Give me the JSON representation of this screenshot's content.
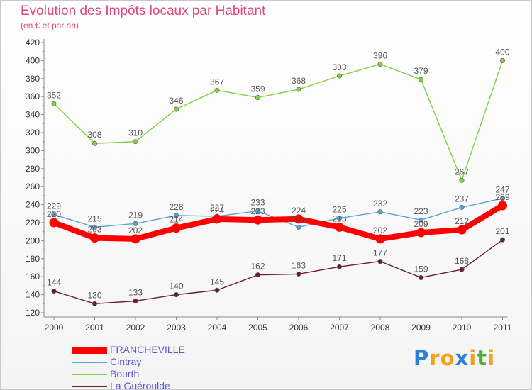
{
  "header": {
    "title": "Evolution des Impôts locaux par Habitant",
    "subtitle": "(en € et par an)"
  },
  "logo": {
    "text": "Proxiti",
    "letters": [
      {
        "char": "P",
        "color": "#2e7fd6"
      },
      {
        "char": "r",
        "color": "#f0a21b"
      },
      {
        "char": "o",
        "color": "#f0a21b"
      },
      {
        "char": "x",
        "color": "#2e7fd6"
      },
      {
        "char": "i",
        "color": "#f0a21b"
      },
      {
        "char": "t",
        "color": "#4fae3a"
      },
      {
        "char": "i",
        "color": "#f0a21b"
      }
    ]
  },
  "chart_data": {
    "type": "line",
    "title": "Evolution des Impôts locaux par Habitant",
    "subtitle": "(en € et par an)",
    "xlabel": "",
    "ylabel": "",
    "categories": [
      "2000",
      "2001",
      "2002",
      "2003",
      "2004",
      "2005",
      "2006",
      "2007",
      "2008",
      "2009",
      "2010",
      "2011"
    ],
    "yticks": [
      120,
      140,
      160,
      180,
      200,
      220,
      240,
      260,
      280,
      300,
      320,
      340,
      360,
      380,
      400,
      420
    ],
    "ylim": [
      120,
      420
    ],
    "grid": false,
    "legend_position": "bottom-left",
    "series": [
      {
        "name": "La Guéroulde",
        "color": "#6b1f26",
        "weight": "thin",
        "values": [
          144,
          130,
          133,
          140,
          145,
          162,
          163,
          171,
          177,
          159,
          168,
          201
        ]
      },
      {
        "name": "Bourth",
        "color": "#82d043",
        "weight": "thin",
        "values": [
          352,
          308,
          310,
          346,
          367,
          359,
          368,
          383,
          396,
          379,
          267,
          400
        ]
      },
      {
        "name": "Cintray",
        "color": "#5aa2d6",
        "weight": "thin",
        "values": [
          229,
          215,
          219,
          228,
          227,
          233,
          215,
          225,
          232,
          223,
          237,
          247
        ]
      },
      {
        "name": "FRANCHEVILLE",
        "color": "#ff0000",
        "weight": "thick",
        "values": [
          220,
          203,
          202,
          214,
          224,
          223,
          224,
          215,
          202,
          209,
          212,
          239
        ]
      }
    ],
    "legend_order": [
      "FRANCHEVILLE",
      "Cintray",
      "Bourth",
      "La Guéroulde"
    ]
  }
}
